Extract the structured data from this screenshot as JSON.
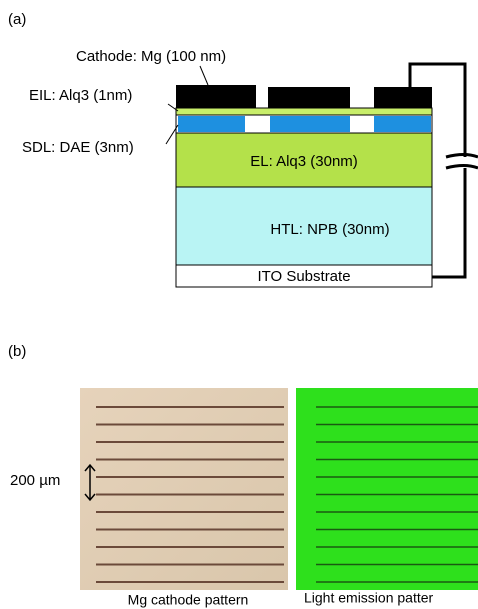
{
  "panel_a": {
    "label": "(a)",
    "layers": {
      "cathode": "Cathode: Mg (100 nm)",
      "eil": "EIL: Alq3 (1nm)",
      "sdl": "SDL: DAE (3nm)",
      "el": "EL: Alq3 (30nm)",
      "htl": "HTL: NPB (30nm)",
      "substrate": "ITO Substrate"
    }
  },
  "panel_b": {
    "label": "(b)",
    "scale": "200 µm",
    "captions": [
      "Mg cathode pattern",
      "Light emission patter"
    ]
  }
}
